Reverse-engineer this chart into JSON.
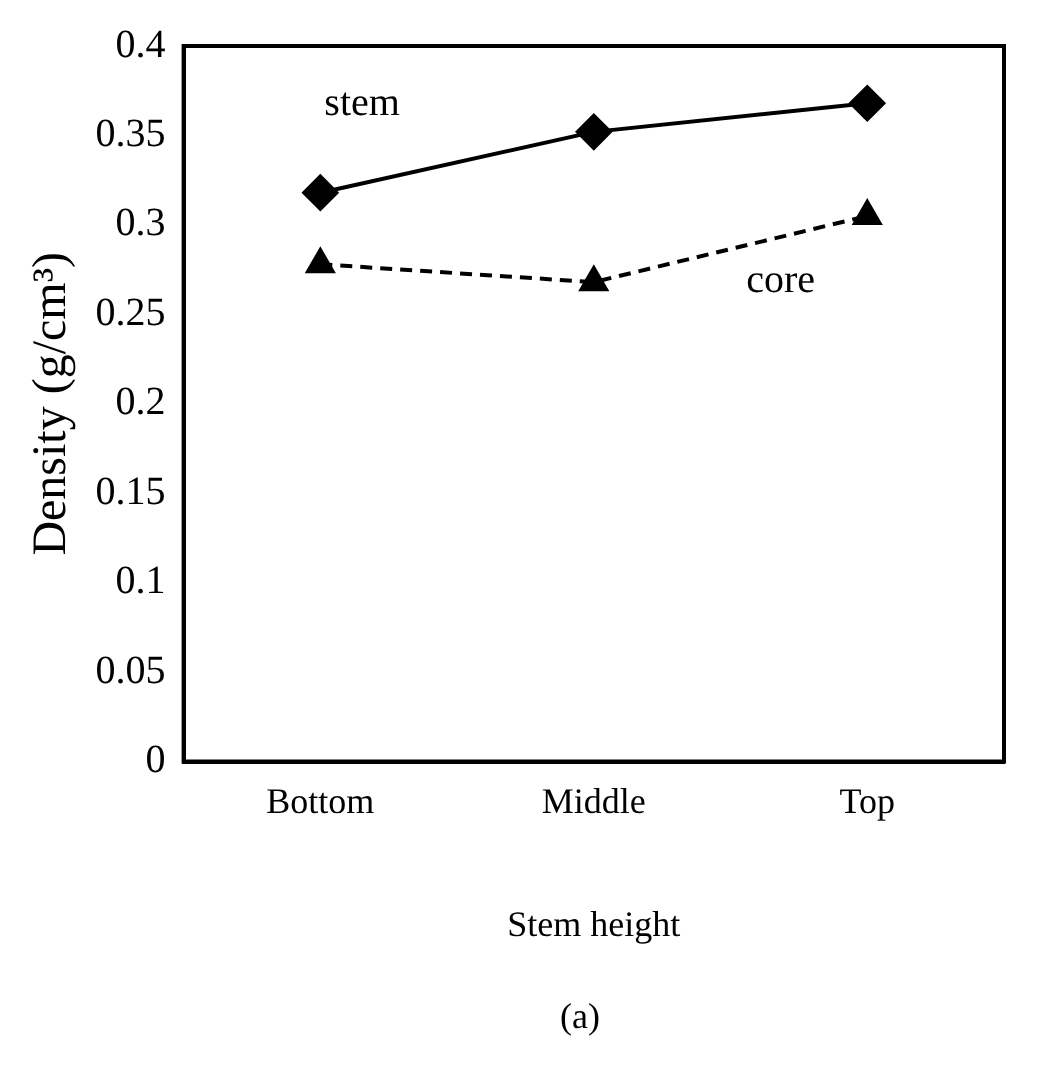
{
  "chart_data": {
    "type": "line",
    "xlabel": "Stem height",
    "ylabel": "Density (g/cm³)",
    "categories": [
      "Bottom",
      "Middle",
      "Top"
    ],
    "series": [
      {
        "name": "stem",
        "color": "#000000",
        "values": [
          0.318,
          0.352,
          0.368
        ],
        "marker": "diamond",
        "line_style": "solid"
      },
      {
        "name": "core",
        "color": "#000000",
        "values": [
          0.278,
          0.268,
          0.305
        ],
        "marker": "triangle",
        "line_style": "dashed"
      }
    ],
    "ylim": [
      0,
      0.4
    ],
    "yticks": [
      0,
      0.05,
      0.1,
      0.15,
      0.2,
      0.25,
      0.3,
      0.35,
      0.4
    ],
    "grid": false,
    "legend": false,
    "annotations": [
      "(a)"
    ]
  }
}
